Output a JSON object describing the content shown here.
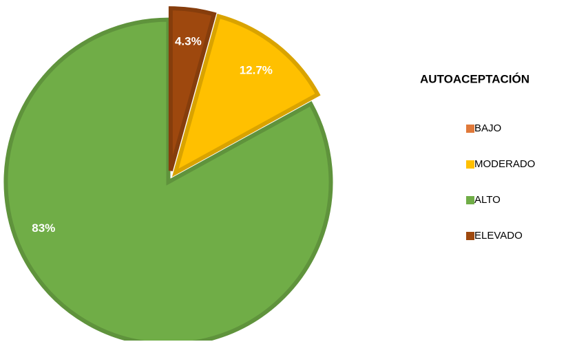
{
  "chart_data": {
    "type": "pie",
    "legend_title": "AUTOACEPTACIÓN",
    "categories": [
      "BAJO",
      "MODERADO",
      "ALTO",
      "ELEVADO"
    ],
    "values": [
      0,
      12.7,
      83,
      4.3
    ],
    "value_labels": [
      null,
      "12.7%",
      "83%",
      "4.3%"
    ],
    "colors": [
      "#e0793a",
      "#ffc000",
      "#70ad47",
      "#9e480e"
    ],
    "legend": "right"
  }
}
